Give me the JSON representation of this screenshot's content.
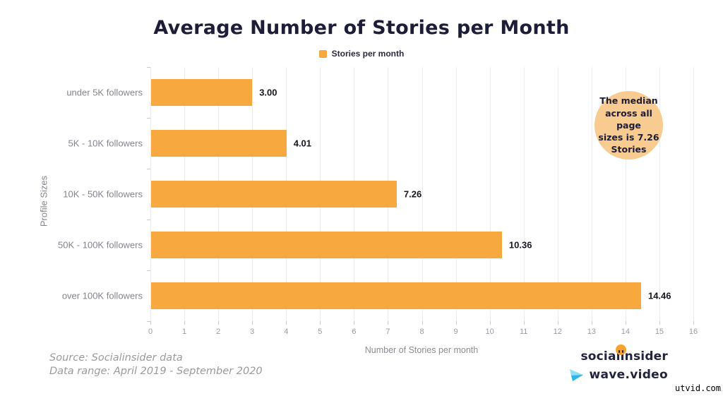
{
  "chart_data": {
    "type": "bar",
    "orientation": "horizontal",
    "title": "Average Number of Stories per Month",
    "legend": {
      "label": "Stories per month",
      "position": "top-center"
    },
    "categories": [
      "under 5K followers",
      "5K - 10K followers",
      "10K - 50K followers",
      "50K - 100K followers",
      "over 100K followers"
    ],
    "values": [
      3.0,
      4.01,
      7.26,
      10.36,
      14.46
    ],
    "value_labels": [
      "3.00",
      "4.01",
      "7.26",
      "10.36",
      "14.46"
    ],
    "xlabel": "Number of Stories per month",
    "ylabel": "Profile Sizes",
    "xlim": [
      0,
      16
    ],
    "xtick_step": 1,
    "grid": "vertical",
    "bar_color": "#f7a83e"
  },
  "annotation": {
    "text": "The median\nacross all page\nsizes is 7.26\nStories",
    "bg_color": "#f8cc90"
  },
  "source": {
    "line1": "Source: Socialinsider data",
    "line2": "Data range: April 2019 - September 2020"
  },
  "branding": {
    "socialinsider": "socialinsider",
    "wave_video": "wave.video",
    "dot_color": "#f6a230"
  },
  "watermark": "utvid.com",
  "colors": {
    "accent_orange": "#f7a83e",
    "annotation_orange": "#f8cc90",
    "title_navy": "#1d1d3a",
    "label_gray": "#85858d"
  }
}
